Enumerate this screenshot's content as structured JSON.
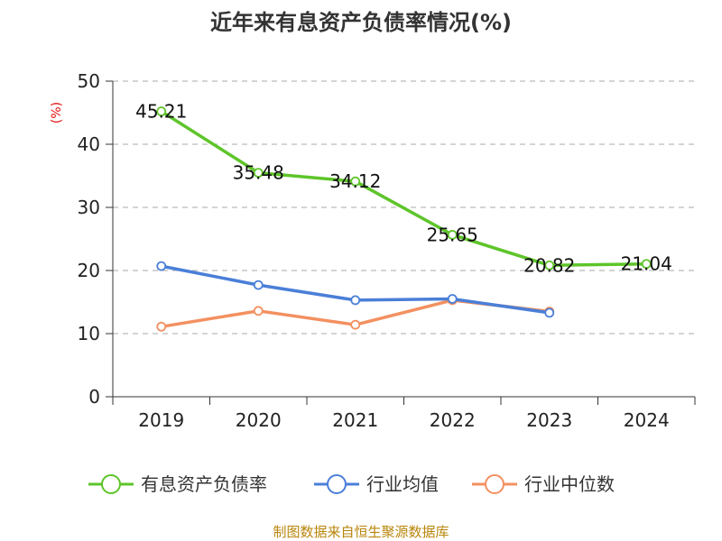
{
  "chart_data": {
    "type": "line",
    "title": "近年来有息资产负债率情况(%)",
    "ylabel": "(%)",
    "xlabel": "",
    "ylim": [
      0,
      50
    ],
    "yticks": [
      0,
      10,
      20,
      30,
      40,
      50
    ],
    "categories": [
      "2019",
      "2020",
      "2021",
      "2022",
      "2023",
      "2024"
    ],
    "grid": true,
    "legend_position": "bottom",
    "source": "制图数据来自恒生聚源数据库",
    "series": [
      {
        "name": "有息资产负债率",
        "color": "#5ec52a",
        "values": [
          45.21,
          35.48,
          34.12,
          25.65,
          20.82,
          21.04
        ],
        "labels": [
          "45.21",
          "35.48",
          "34.12",
          "25.65",
          "20.82",
          "21.04"
        ]
      },
      {
        "name": "行业均值",
        "color": "#4a7fd8",
        "values": [
          20.7,
          17.7,
          15.3,
          15.5,
          13.3,
          null
        ]
      },
      {
        "name": "行业中位数",
        "color": "#f39060",
        "values": [
          11.1,
          13.6,
          11.4,
          15.3,
          13.5,
          null
        ]
      }
    ]
  }
}
